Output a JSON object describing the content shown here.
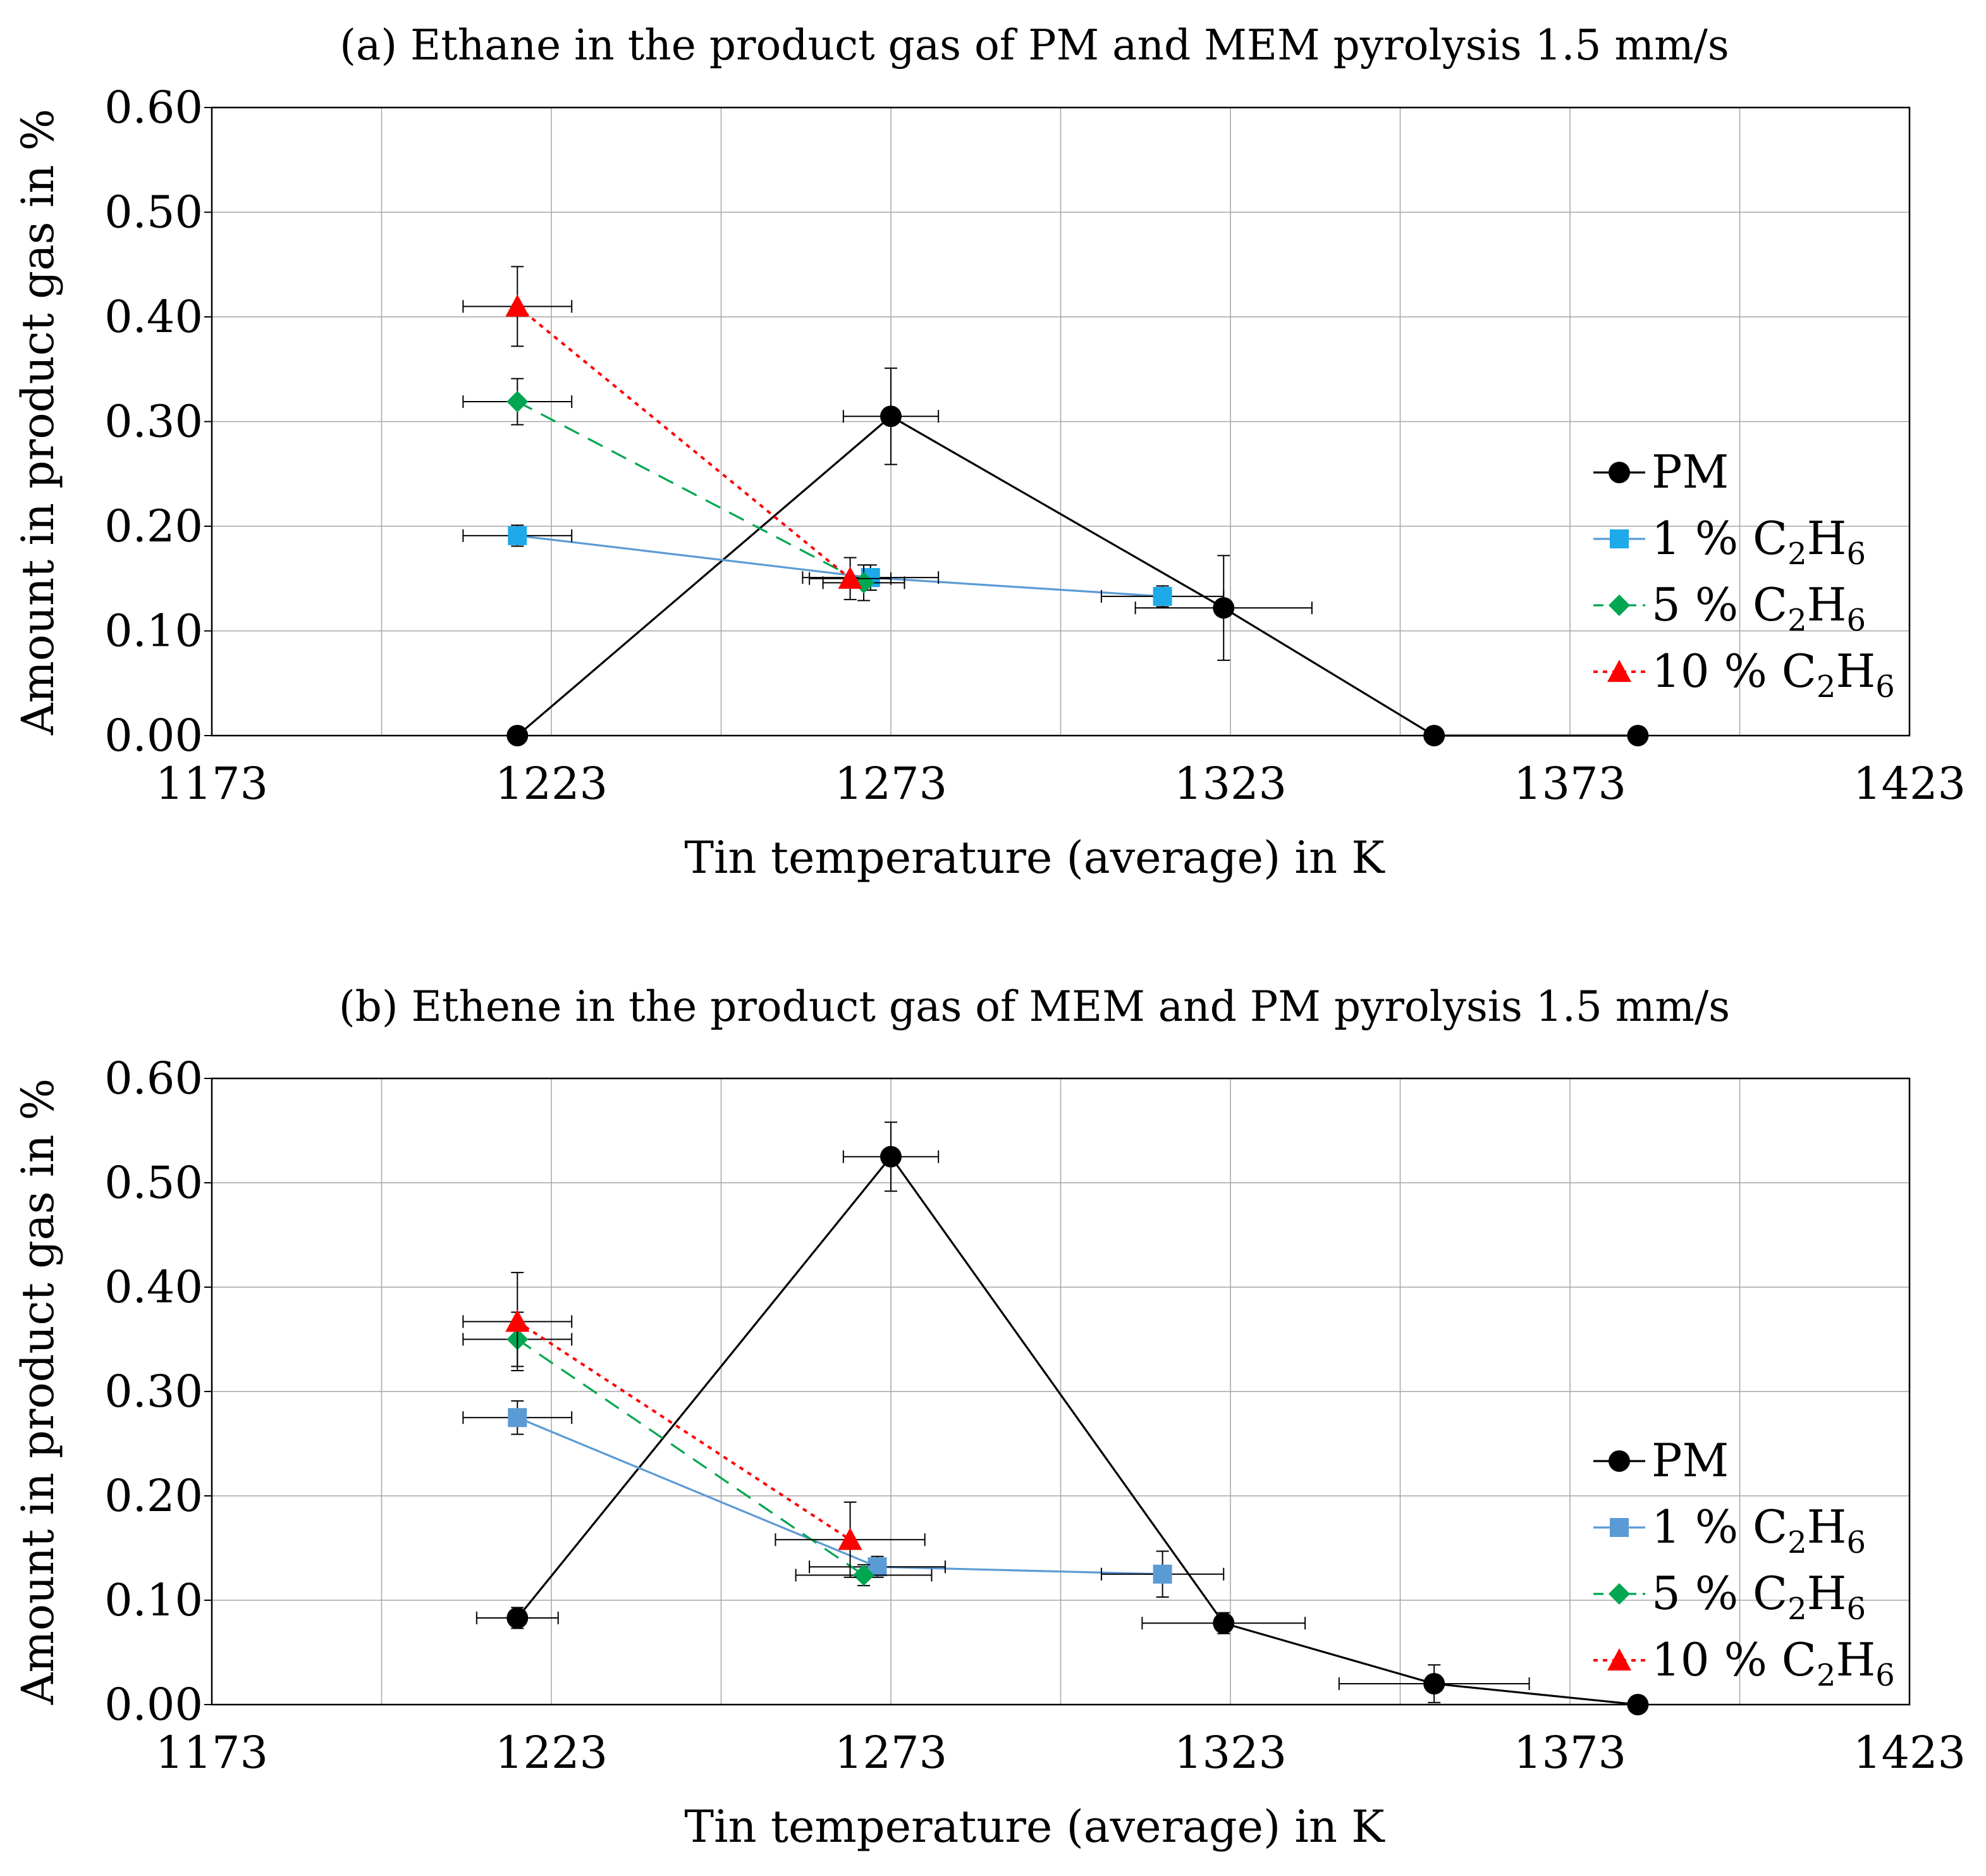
{
  "chart_data": [
    {
      "type": "scatter",
      "title": "(a) Ethane in the product gas of PM and MEM pyrolysis 1.5 mm/s",
      "xlabel": "Tin temperature (average) in K",
      "ylabel": "Amount in product gas in %",
      "xlim": [
        1173,
        1423
      ],
      "ylim": [
        0,
        0.6
      ],
      "xticks": [
        1173,
        1223,
        1273,
        1323,
        1373,
        1423
      ],
      "xtick_labels": [
        "1173",
        "1223",
        "1273",
        "1323",
        "1373",
        "1423"
      ],
      "yticks": [
        0,
        0.1,
        0.2,
        0.3,
        0.4,
        0.5,
        0.6
      ],
      "ytick_labels": [
        "0.00",
        "0.10",
        "0.20",
        "0.30",
        "0.40",
        "0.50",
        "0.60"
      ],
      "grid": true,
      "legend_position": "right",
      "series": [
        {
          "name": "PM",
          "label_parts": [
            "PM"
          ],
          "color": "#000000",
          "marker": "circle",
          "line": "solid",
          "x": [
            1218,
            1273,
            1322,
            1353,
            1383
          ],
          "y": [
            0,
            0.305,
            0.122,
            0,
            0
          ],
          "xerr": [
            0,
            7,
            13,
            0,
            0
          ],
          "yerr": [
            0,
            0.046,
            0.05,
            0,
            0
          ]
        },
        {
          "name": "1 % C2H6",
          "label_parts": [
            "1 % C",
            "2",
            "H",
            "6"
          ],
          "color": "#1ea9e8",
          "line_color": "#5b9bd5",
          "marker": "square",
          "line": "solid",
          "x": [
            1218,
            1270,
            1313
          ],
          "y": [
            0.191,
            0.151,
            0.133
          ],
          "xerr": [
            8,
            10,
            9
          ],
          "yerr": [
            0.01,
            0.012,
            0.01
          ]
        },
        {
          "name": "5 % C2H6",
          "label_parts": [
            "5 % C",
            "2",
            "H",
            "6"
          ],
          "color": "#00a651",
          "marker": "diamond",
          "line": "dashed",
          "x": [
            1218,
            1269
          ],
          "y": [
            0.319,
            0.146
          ],
          "xerr": [
            8,
            6
          ],
          "yerr": [
            0.022,
            0.017
          ]
        },
        {
          "name": "10 % C2H6",
          "label_parts": [
            "10 % C",
            "2",
            "H",
            "6"
          ],
          "color": "#ff0000",
          "marker": "triangle",
          "line": "dotted",
          "x": [
            1218,
            1267
          ],
          "y": [
            0.41,
            0.15
          ],
          "xerr": [
            8,
            6
          ],
          "yerr": [
            0.038,
            0.02
          ]
        }
      ]
    },
    {
      "type": "scatter",
      "title": "(b) Ethene in the product gas of MEM and PM pyrolysis 1.5 mm/s",
      "xlabel": "Tin temperature (average) in K",
      "ylabel": "Amount in product gas in %",
      "xlim": [
        1173,
        1423
      ],
      "ylim": [
        0,
        0.6
      ],
      "xticks": [
        1173,
        1223,
        1273,
        1323,
        1373,
        1423
      ],
      "xtick_labels": [
        "1173",
        "1223",
        "1273",
        "1323",
        "1373",
        "1423"
      ],
      "yticks": [
        0,
        0.1,
        0.2,
        0.3,
        0.4,
        0.5,
        0.6
      ],
      "ytick_labels": [
        "0.00",
        "0.10",
        "0.20",
        "0.30",
        "0.40",
        "0.50",
        "0.60"
      ],
      "grid": true,
      "legend_position": "right",
      "series": [
        {
          "name": "PM",
          "label_parts": [
            "PM"
          ],
          "color": "#000000",
          "marker": "circle",
          "line": "solid",
          "x": [
            1218,
            1273,
            1322,
            1353,
            1383
          ],
          "y": [
            0.083,
            0.525,
            0.078,
            0.02,
            0
          ],
          "xerr": [
            6,
            7,
            12,
            14,
            0
          ],
          "yerr": [
            0.01,
            0.033,
            0.01,
            0.018,
            0
          ]
        },
        {
          "name": "1 % C2H6",
          "label_parts": [
            "1 % C",
            "2",
            "H",
            "6"
          ],
          "color": "#5b9bd5",
          "line_color": "#5b9bd5",
          "marker": "square",
          "line": "solid",
          "x": [
            1218,
            1271,
            1313
          ],
          "y": [
            0.275,
            0.132,
            0.125
          ],
          "xerr": [
            8,
            10,
            9
          ],
          "yerr": [
            0.016,
            0.01,
            0.022
          ]
        },
        {
          "name": "5 % C2H6",
          "label_parts": [
            "5 % C",
            "2",
            "H",
            "6"
          ],
          "color": "#00a651",
          "marker": "diamond",
          "line": "dashed",
          "x": [
            1218,
            1269
          ],
          "y": [
            0.35,
            0.124
          ],
          "xerr": [
            8,
            10
          ],
          "yerr": [
            0.026,
            0.01
          ]
        },
        {
          "name": "10 % C2H6",
          "label_parts": [
            "10 % C",
            "2",
            "H",
            "6"
          ],
          "color": "#ff0000",
          "marker": "triangle",
          "line": "dotted",
          "x": [
            1218,
            1267
          ],
          "y": [
            0.367,
            0.158
          ],
          "xerr": [
            8,
            11
          ],
          "yerr": [
            0.047,
            0.036
          ]
        }
      ]
    }
  ]
}
